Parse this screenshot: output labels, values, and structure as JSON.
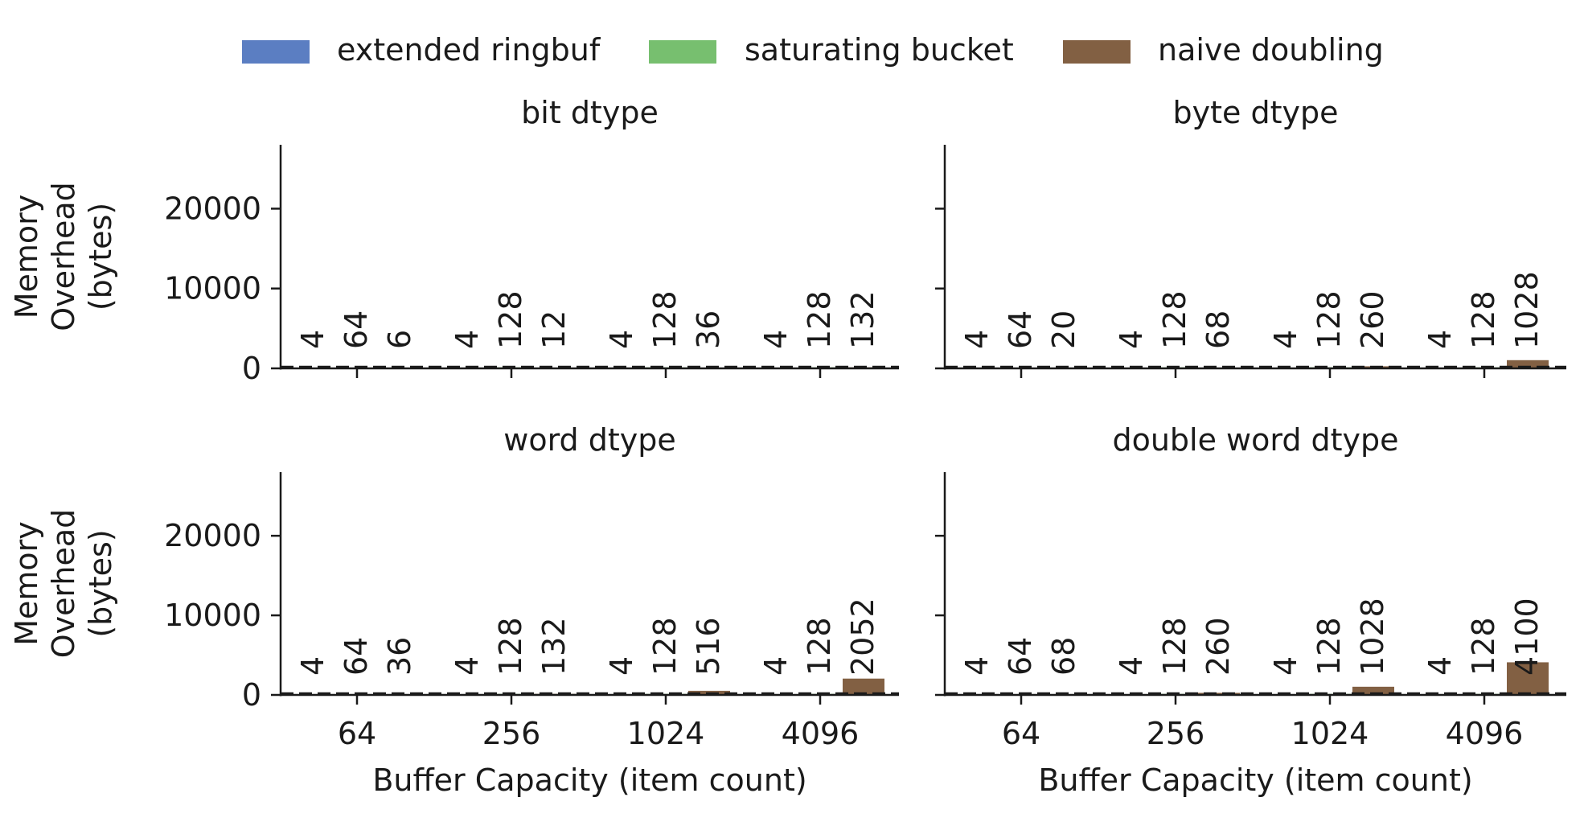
{
  "legend": [
    {
      "name": "extended ringbuf",
      "color": "#5b7ec2"
    },
    {
      "name": "saturating bucket",
      "color": "#77bf6f"
    },
    {
      "name": "naive doubling",
      "color": "#826043"
    }
  ],
  "chart_data": [
    {
      "type": "bar",
      "title": "bit dtype",
      "categories": [
        "64",
        "256",
        "1024",
        "4096"
      ],
      "series": [
        {
          "name": "extended ringbuf",
          "values": [
            4,
            4,
            4,
            4
          ]
        },
        {
          "name": "saturating bucket",
          "values": [
            64,
            128,
            128,
            128
          ]
        },
        {
          "name": "naive doubling",
          "values": [
            6,
            12,
            36,
            132
          ]
        }
      ],
      "ylabel": "Memory\nOverhead\n(bytes)",
      "xlabel": "",
      "yticks": [
        0,
        10000,
        20000
      ],
      "ylim": [
        0,
        28000
      ],
      "baseline": 0,
      "grid": false
    },
    {
      "type": "bar",
      "title": "byte dtype",
      "categories": [
        "64",
        "256",
        "1024",
        "4096"
      ],
      "series": [
        {
          "name": "extended ringbuf",
          "values": [
            4,
            4,
            4,
            4
          ]
        },
        {
          "name": "saturating bucket",
          "values": [
            64,
            128,
            128,
            128
          ]
        },
        {
          "name": "naive doubling",
          "values": [
            20,
            68,
            260,
            1028
          ]
        }
      ],
      "ylabel": "",
      "xlabel": "",
      "yticks": [
        0,
        10000,
        20000
      ],
      "ylim": [
        0,
        28000
      ],
      "baseline": 0,
      "grid": false
    },
    {
      "type": "bar",
      "title": "word dtype",
      "categories": [
        "64",
        "256",
        "1024",
        "4096"
      ],
      "series": [
        {
          "name": "extended ringbuf",
          "values": [
            4,
            4,
            4,
            4
          ]
        },
        {
          "name": "saturating bucket",
          "values": [
            64,
            128,
            128,
            128
          ]
        },
        {
          "name": "naive doubling",
          "values": [
            36,
            132,
            516,
            2052
          ]
        }
      ],
      "ylabel": "Memory\nOverhead\n(bytes)",
      "xlabel": "Buffer Capacity (item count)",
      "yticks": [
        0,
        10000,
        20000
      ],
      "ylim": [
        0,
        28000
      ],
      "baseline": 0,
      "grid": false
    },
    {
      "type": "bar",
      "title": "double word dtype",
      "categories": [
        "64",
        "256",
        "1024",
        "4096"
      ],
      "series": [
        {
          "name": "extended ringbuf",
          "values": [
            4,
            4,
            4,
            4
          ]
        },
        {
          "name": "saturating bucket",
          "values": [
            64,
            128,
            128,
            128
          ]
        },
        {
          "name": "naive doubling",
          "values": [
            68,
            260,
            1028,
            4100
          ]
        }
      ],
      "ylabel": "",
      "xlabel": "Buffer Capacity (item count)",
      "yticks": [
        0,
        10000,
        20000
      ],
      "ylim": [
        0,
        28000
      ],
      "baseline": 0,
      "grid": false
    }
  ]
}
